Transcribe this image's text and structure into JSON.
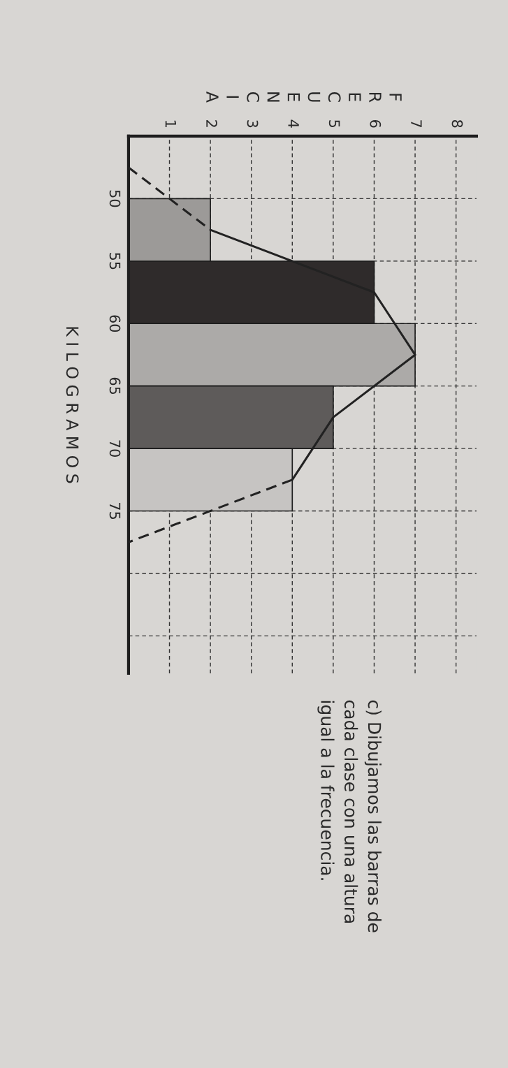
{
  "chart_data": {
    "type": "histogram",
    "orientation": "horizontal",
    "xlabel": "FRECUENCIA",
    "ylabel": "K I L O G R A M O S",
    "bins": [
      50,
      55,
      60,
      65,
      70,
      75
    ],
    "values": [
      2,
      6,
      7,
      5,
      4
    ],
    "colors": [
      "#9c9a98",
      "#2f2b2b",
      "#acaaa8",
      "#5e5b5a",
      "#c6c4c2"
    ],
    "series": [
      {
        "type": "line",
        "x": [
          47.5,
          52.5
        ],
        "values": [
          0,
          2
        ],
        "line_style": "dashed",
        "color": "#222222"
      },
      {
        "type": "line",
        "x": [
          52.5,
          57.5,
          62.5,
          67.5,
          72.5
        ],
        "values": [
          2,
          6,
          7,
          5,
          4
        ],
        "line_style": "solid",
        "color": "#222222"
      },
      {
        "type": "line",
        "x": [
          72.5,
          77.5
        ],
        "values": [
          4,
          0
        ],
        "line_style": "dashed",
        "color": "#222222"
      }
    ],
    "xlim": [
      0,
      8.5
    ],
    "xticks": [
      1,
      2,
      3,
      4,
      5,
      6,
      7,
      8
    ],
    "ylim": [
      88,
      45
    ],
    "yticks": [
      50,
      55,
      60,
      65,
      70,
      75,
      {
        "value": 80,
        "label": null
      },
      {
        "value": 85,
        "label": null
      }
    ],
    "grid": true,
    "annotations": [
      "c) Dibujamos las barras de\ncada clase con una altura\nigual a la frecuencia."
    ]
  }
}
